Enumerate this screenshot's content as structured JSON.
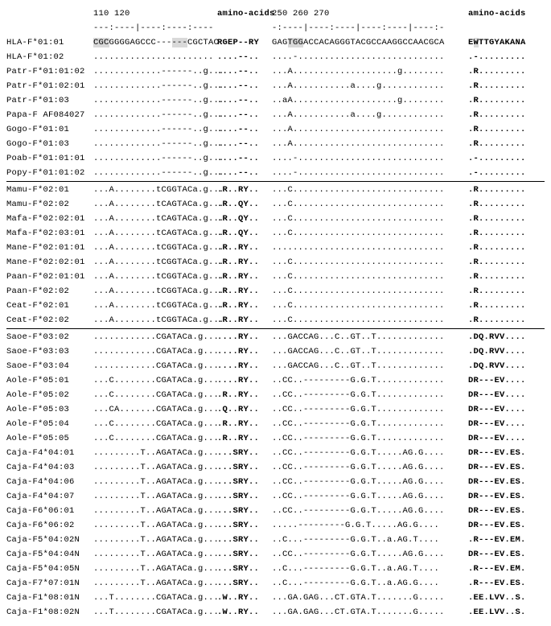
{
  "header_numbers": {
    "seq1": "         110       120",
    "aa1": "amino-acids",
    "seq2": "         250       260       270",
    "aa2": "amino-acids"
  },
  "ruler": {
    "seq1": "---:----|----:----:----",
    "aa1": "",
    "seq2": "-:----|----:----|----:----|----:-",
    "aa2": ""
  },
  "rows_group1": [
    {
      "name": "HLA-F*01:01",
      "seq1": "CGCGGGGAGCCC------CGCTAC",
      "aa1": "RGEP--RY",
      "seq2": "GAGTGGACCACAGGGTACGCCAAGGCCAACGCA",
      "aa2": "EWTTGYAKANA"
    },
    {
      "name": "HLA-F*01:02",
      "seq1": ".......................",
      "aa1": "....--..",
      "seq2": "....-............................",
      "aa2": ".-........."
    },
    {
      "name": "Patr-F*01:01:02",
      "seq1": ".............------..g...",
      "aa1": "....--..",
      "seq2": "...A....................g........",
      "aa2": ".R........."
    },
    {
      "name": "Patr-F*01:02:01",
      "seq1": ".............------..g...",
      "aa1": "....--..",
      "seq2": "...A...........a....g............",
      "aa2": ".R........."
    },
    {
      "name": "Patr-F*01:03",
      "seq1": ".............------..g...",
      "aa1": "....--..",
      "seq2": "..aA....................g........",
      "aa2": ".R........."
    },
    {
      "name": "Papa-F AF084027",
      "seq1": ".............------..g...",
      "aa1": "....--..",
      "seq2": "...A...........a....g............",
      "aa2": ".R........."
    },
    {
      "name": "Gogo-F*01:01",
      "seq1": ".............------..g...",
      "aa1": "....--..",
      "seq2": "...A.............................",
      "aa2": ".R........."
    },
    {
      "name": "Gogo-F*01:03",
      "seq1": ".............------..g...",
      "aa1": "....--..",
      "seq2": "...A.............................",
      "aa2": ".R........."
    },
    {
      "name": "Poab-F*01:01:01",
      "seq1": ".............------..g...",
      "aa1": "....--..",
      "seq2": "....-............................",
      "aa2": ".-........."
    },
    {
      "name": "Popy-F*01:01:02",
      "seq1": ".............------..g...",
      "aa1": "....--..",
      "seq2": "....-............................",
      "aa2": ".-........."
    }
  ],
  "rows_group2": [
    {
      "name": "Mamu-F*02:01",
      "seq1": "...A........tCGGTACa.g...",
      "aa1": ".R..RY..",
      "seq2": "...C.............................",
      "aa2": ".R........."
    },
    {
      "name": "Mamu-F*02:02",
      "seq1": "...A........tCAGTACa.g...",
      "aa1": ".R..QY..",
      "seq2": "...C.............................",
      "aa2": ".R........."
    },
    {
      "name": "Mafa-F*02:02:01",
      "seq1": "...A........tCAGTACa.g...",
      "aa1": ".R..QY..",
      "seq2": "...C.............................",
      "aa2": ".R........."
    },
    {
      "name": "Mafa-F*02:03:01",
      "seq1": "...A........tCAGTACa.g...",
      "aa1": ".R..QY..",
      "seq2": "...C.............................",
      "aa2": ".R........."
    },
    {
      "name": "Mane-F*02:01:01",
      "seq1": "...A........tCGGTACa.g...",
      "aa1": ".R..RY..",
      "seq2": ".................................",
      "aa2": ".R........."
    },
    {
      "name": "Mane-F*02:02:01",
      "seq1": "...A........tCGGTACa.g...",
      "aa1": ".R..RY..",
      "seq2": "...C.............................",
      "aa2": ".R........."
    },
    {
      "name": "Paan-F*02:01:01",
      "seq1": "...A........tCGGTACa.g...",
      "aa1": ".R..RY..",
      "seq2": "...C.............................",
      "aa2": ".R........."
    },
    {
      "name": "Paan-F*02:02",
      "seq1": "...A........tCGGTACa.g...",
      "aa1": ".R..RY..",
      "seq2": "...C.............................",
      "aa2": ".R........."
    },
    {
      "name": "Ceat-F*02:01",
      "seq1": "...A........tCGGTACa.g...",
      "aa1": ".R..RY..",
      "seq2": "...C.............................",
      "aa2": ".R........."
    },
    {
      "name": "Ceat-F*02:02",
      "seq1": "...A........tCGGTACa.g...",
      "aa1": ".R..RY..",
      "seq2": "...C.............................",
      "aa2": ".R........."
    }
  ],
  "rows_group3": [
    {
      "name": "Saoe-F*03:02",
      "seq1": "............CGATACa.g...",
      "aa1": "....RY..",
      "seq2": "...GACCAG...C..GT..T.............",
      "aa2": ".DQ.RVV...."
    },
    {
      "name": "Saoe-F*03:03",
      "seq1": "............CGATACa.g...",
      "aa1": "....RY..",
      "seq2": "...GACCAG...C..GT..T.............",
      "aa2": ".DQ.RVV...."
    },
    {
      "name": "Saoe-F*03:04",
      "seq1": "............CGATACa.g...",
      "aa1": "....RY..",
      "seq2": "...GACCAG...C..GT..T.............",
      "aa2": ".DQ.RVV...."
    },
    {
      "name": "Aole-F*05:01",
      "seq1": "...C........CGATACa.g...",
      "aa1": "....RY..",
      "seq2": "..CC..---------G.G.T.............",
      "aa2": "DR---EV...."
    },
    {
      "name": "Aole-F*05:02",
      "seq1": "...C........CGATACa.g...",
      "aa1": ".R..RY..",
      "seq2": "..CC..---------G.G.T.............",
      "aa2": "DR---EV...."
    },
    {
      "name": "Aole-F*05:03",
      "seq1": "...CA.......CGATACa.g...",
      "aa1": ".Q..RY..",
      "seq2": "..CC..---------G.G.T.............",
      "aa2": "DR---EV...."
    },
    {
      "name": "Aole-F*05:04",
      "seq1": "...C........CGATACa.g...",
      "aa1": ".R..RY..",
      "seq2": "..CC..---------G.G.T.............",
      "aa2": "DR---EV...."
    },
    {
      "name": "Aole-F*05:05",
      "seq1": "...C........CGATACa.g...",
      "aa1": ".R..RY..",
      "seq2": "..CC..---------G.G.T.............",
      "aa2": "DR---EV...."
    },
    {
      "name": "Caja-F4*04:01",
      "seq1": ".........T..AGATACa.g...",
      "aa1": "...SRY..",
      "seq2": "..CC..---------G.G.T.....AG.G....",
      "aa2": "DR---EV.ES."
    },
    {
      "name": "Caja-F4*04:03",
      "seq1": ".........T..AGATACa.g...",
      "aa1": "...SRY..",
      "seq2": "..CC..---------G.G.T.....AG.G....",
      "aa2": "DR---EV.ES."
    },
    {
      "name": "Caja-F4*04:06",
      "seq1": ".........T..AGATACa.g...",
      "aa1": "...SRY..",
      "seq2": "..CC..---------G.G.T.....AG.G....",
      "aa2": "DR---EV.ES."
    },
    {
      "name": "Caja-F4*04:07",
      "seq1": ".........T..AGATACa.g...",
      "aa1": "...SRY..",
      "seq2": "..CC..---------G.G.T.....AG.G....",
      "aa2": "DR---EV.ES."
    },
    {
      "name": "Caja-F6*06:01",
      "seq1": ".........T..AGATACa.g...",
      "aa1": "...SRY..",
      "seq2": "..CC..---------G.G.T.....AG.G....",
      "aa2": "DR---EV.ES."
    },
    {
      "name": "Caja-F6*06:02",
      "seq1": ".........T..AGATACa.g...",
      "aa1": "...SRY..",
      "seq2": ".....---------G.G.T.....AG.G....",
      "aa2": "DR---EV.ES."
    },
    {
      "name": "Caja-F5*04:02N",
      "seq1": ".........T..AGATACa.g...",
      "aa1": "...SRY..",
      "seq2": "..C...---------G.G.T..a.AG.T....",
      "aa2": ".R---EV.EM."
    },
    {
      "name": "Caja-F5*04:04N",
      "seq1": ".........T..AGATACa.g...",
      "aa1": "...SRY..",
      "seq2": "..CC..---------G.G.T.....AG.G....",
      "aa2": "DR---EV.ES."
    },
    {
      "name": "Caja-F5*04:05N",
      "seq1": ".........T..AGATACa.g...",
      "aa1": "...SRY..",
      "seq2": "..C...---------G.G.T..a.AG.T....",
      "aa2": ".R---EV.EM."
    },
    {
      "name": "Caja-F7*07:01N",
      "seq1": ".........T..AGATACa.g...",
      "aa1": "...SRY..",
      "seq2": "..C...---------G.G.T..a.AG.G....",
      "aa2": ".R---EV.ES."
    },
    {
      "name": "Caja-F1*08:01N",
      "seq1": "...T........CGATACa.g...",
      "aa1": ".W..RY..",
      "seq2": "...GA.GAG...CT.GTA.T.......G.....",
      "aa2": ".EE.LVV..S."
    },
    {
      "name": "Caja-F1*08:02N",
      "seq1": "...T........CGATACa.g...",
      "aa1": ".W..RY..",
      "seq2": "...GA.GAG...CT.GTA.T.......G.....",
      "aa2": ".EE.LVV..S."
    }
  ]
}
